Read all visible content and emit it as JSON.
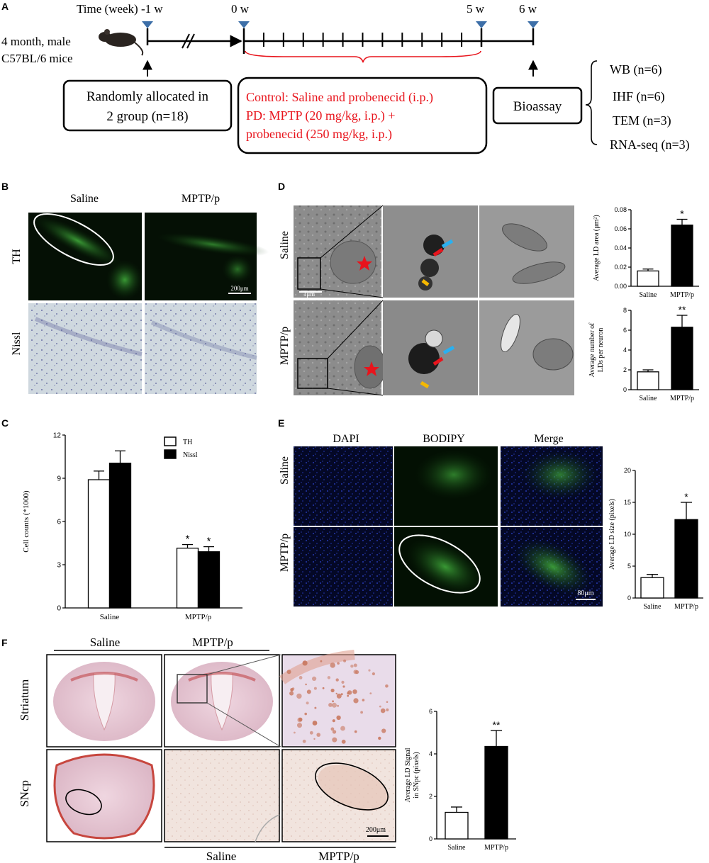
{
  "panel_labels": {
    "A": "A",
    "B": "B",
    "C": "C",
    "D": "D",
    "E": "E",
    "F": "F"
  },
  "timeline": {
    "mouse_line1": "4 month, male",
    "mouse_line2": "C57BL/6  mice",
    "time_label": "Time (week) -1 w",
    "w0": "0 w",
    "w5": "5 w",
    "w6": "6 w",
    "allocation_line1": "Randomly allocated in",
    "allocation_line2": "2 group (n=18)",
    "treatment_line1": "Control: Saline and probenecid (i.p.)",
    "treatment_line2": "PD: MPTP   (20 mg/kg, i.p.) +",
    "treatment_line3": "probenecid (250 mg/kg, i.p.)",
    "bioassay": "Bioassay",
    "assays": [
      "WB  (n=6)",
      "IHF  (n=6)",
      "TEM  (n=3)",
      "RNA-seq  (n=3)"
    ],
    "colors": {
      "red": "#e8141c",
      "marker": "#3d6fa8",
      "ink": "#000000"
    }
  },
  "panelB": {
    "col_saline": "Saline",
    "col_mptp": "MPTP/p",
    "row_th": "TH",
    "row_nissl": "Nissl",
    "scalebar": "200μm"
  },
  "panelD": {
    "row_saline": "Saline",
    "row_mptp": "MPTP/p",
    "scalebar": "1μm"
  },
  "panelE": {
    "col_dapi": "DAPI",
    "col_bodipy": "BODIPY",
    "col_merge": "Merge",
    "row_saline": "Saline",
    "row_mptp": "MPTP/p",
    "scalebar": "80μm"
  },
  "panelF": {
    "top_saline": "Saline",
    "top_mptp": "MPTP/p",
    "row_striatum": "Striatum",
    "row_sncp": "SNcp",
    "bottom_saline": "Saline",
    "bottom_mptp": "MPTP/p",
    "scalebar": "200μm"
  },
  "chart_data": [
    {
      "id": "C",
      "type": "bar",
      "categories": [
        "Saline",
        "MPTP/p"
      ],
      "series": [
        {
          "name": "TH",
          "values": [
            8.9,
            4.15
          ],
          "errors": [
            0.6,
            0.25
          ],
          "fill": "#ffffff"
        },
        {
          "name": "Nissl",
          "values": [
            10.05,
            3.9
          ],
          "errors": [
            0.85,
            0.35
          ],
          "fill": "#000000"
        }
      ],
      "ylabel": "Cell counts (*1000)",
      "ylim": [
        0,
        12
      ],
      "yticks": [
        "0",
        "3",
        "6",
        "9",
        "12"
      ],
      "annotations": [
        "",
        "",
        "*",
        "*"
      ],
      "legend": "top-right"
    },
    {
      "id": "D1",
      "type": "bar",
      "categories": [
        "Saline",
        "MPTP/p"
      ],
      "values": [
        0.016,
        0.064
      ],
      "errors": [
        0.002,
        0.006
      ],
      "fills": [
        "#ffffff",
        "#000000"
      ],
      "ylabel": "Average LD area (μm²)",
      "ylim": [
        0,
        0.08
      ],
      "yticks": [
        "0.00",
        "0.02",
        "0.04",
        "0.06",
        "0.08"
      ],
      "annotations": [
        "",
        "*"
      ]
    },
    {
      "id": "D2",
      "type": "bar",
      "categories": [
        "Saline",
        "MPTP/p"
      ],
      "values": [
        1.8,
        6.3
      ],
      "errors": [
        0.2,
        1.2
      ],
      "fills": [
        "#ffffff",
        "#000000"
      ],
      "ylabel_line1": "Average number of",
      "ylabel_line2": "LDs per neuron",
      "ylim": [
        0,
        8
      ],
      "yticks": [
        "0",
        "2",
        "4",
        "6",
        "8"
      ],
      "annotations": [
        "",
        "**"
      ]
    },
    {
      "id": "E",
      "type": "bar",
      "categories": [
        "Saline",
        "MPTP/p"
      ],
      "values": [
        3.2,
        12.3
      ],
      "errors": [
        0.5,
        2.7
      ],
      "fills": [
        "#ffffff",
        "#000000"
      ],
      "ylabel": "Average LD  size (pixels)",
      "ylim": [
        0,
        20
      ],
      "yticks": [
        "0",
        "5",
        "10",
        "15",
        "20"
      ],
      "annotations": [
        "",
        "*"
      ]
    },
    {
      "id": "F",
      "type": "bar",
      "categories": [
        "Saline",
        "MPTP/p"
      ],
      "values": [
        1.25,
        4.35
      ],
      "errors": [
        0.25,
        0.75
      ],
      "fills": [
        "#ffffff",
        "#000000"
      ],
      "ylabel_line1": "Average LD Signal",
      "ylabel_line2": "in SNpc (pixels)",
      "ylim": [
        0,
        6
      ],
      "yticks": [
        "0",
        "2",
        "4",
        "6"
      ],
      "annotations": [
        "",
        "**"
      ]
    }
  ]
}
